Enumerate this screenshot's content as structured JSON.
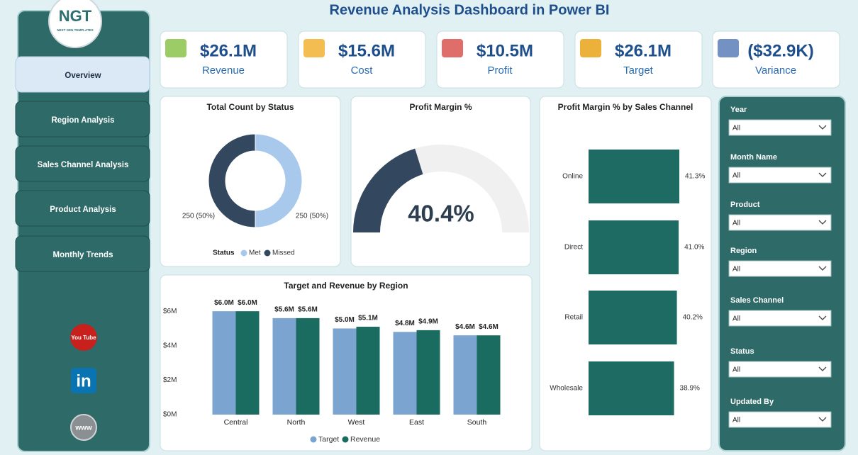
{
  "title": "Revenue Analysis Dashboard in Power BI",
  "logo": {
    "text": "NGT",
    "subtitle": "NEXT GEN TEMPLATES"
  },
  "nav": [
    "Overview",
    "Region Analysis",
    "Sales Channel Analysis",
    "Product Analysis",
    "Monthly Trends"
  ],
  "social": [
    "You Tube",
    "in",
    "www"
  ],
  "kpis": [
    {
      "value": "$26.1M",
      "label": "Revenue"
    },
    {
      "value": "$15.6M",
      "label": "Cost"
    },
    {
      "value": "$10.5M",
      "label": "Profit"
    },
    {
      "value": "$26.1M",
      "label": "Target"
    },
    {
      "value": "($32.9K)",
      "label": "Variance"
    }
  ],
  "filters": [
    {
      "label": "Year",
      "value": "All"
    },
    {
      "label": "Month Name",
      "value": "All"
    },
    {
      "label": "Product",
      "value": "All"
    },
    {
      "label": "Region",
      "value": "All"
    },
    {
      "label": "Sales Channel",
      "value": "All"
    },
    {
      "label": "Status",
      "value": "All"
    },
    {
      "label": "Updated By",
      "value": "All"
    }
  ],
  "chart_data": [
    {
      "type": "donut",
      "title": "Total Count by Status",
      "legend_title": "Status",
      "categories": [
        "Met",
        "Missed"
      ],
      "values": [
        250,
        250
      ],
      "value_labels": [
        "250 (50%)",
        "250 (50%)"
      ],
      "colors": [
        "#a8c9ec",
        "#33475f"
      ]
    },
    {
      "type": "gauge",
      "title": "Profit Margin %",
      "value": 40.4,
      "value_label": "40.4%",
      "ylim": [
        0,
        100
      ],
      "color": "#33475f"
    },
    {
      "type": "hbar",
      "title": "Profit Margin % by Sales Channel",
      "categories": [
        "Online",
        "Direct",
        "Retail",
        "Wholesale"
      ],
      "values": [
        41.3,
        41.0,
        40.2,
        38.9
      ],
      "value_labels": [
        "41.3%",
        "41.0%",
        "40.2%",
        "38.9%"
      ],
      "color": "#1d6b62"
    },
    {
      "type": "bar",
      "title": "Target and Revenue by Region",
      "categories": [
        "Central",
        "North",
        "West",
        "East",
        "South"
      ],
      "series": [
        {
          "name": "Target",
          "color": "#7ba4d0",
          "values": [
            6.0,
            5.6,
            5.0,
            4.8,
            4.6
          ],
          "value_labels": [
            "$6.0M",
            "$5.6M",
            "$5.0M",
            "$4.8M",
            "$4.6M"
          ]
        },
        {
          "name": "Revenue",
          "color": "#1a6b60",
          "values": [
            6.0,
            5.6,
            5.1,
            4.9,
            4.6
          ],
          "value_labels": [
            "$6.0M",
            "$5.6M",
            "$5.1M",
            "$4.9M",
            "$4.6M"
          ]
        }
      ],
      "ylim": [
        0,
        6.5
      ],
      "yticks": [
        {
          "value": 0,
          "label": "$0M"
        },
        {
          "value": 2,
          "label": "$2M"
        },
        {
          "value": 4,
          "label": "$4M"
        },
        {
          "value": 6,
          "label": "$6M"
        }
      ],
      "grid": false
    }
  ]
}
